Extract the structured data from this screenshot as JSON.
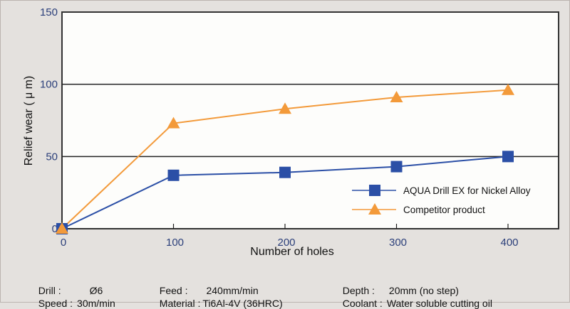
{
  "chart_data": {
    "type": "line",
    "title": "",
    "xlabel": "Number of holes",
    "ylabel": "Relief wear ( μ m)",
    "x": [
      0,
      100,
      200,
      300,
      400
    ],
    "xlim": [
      0,
      450
    ],
    "ylim": [
      0,
      150
    ],
    "xticks": [
      "0",
      "100",
      "200",
      "300",
      "400"
    ],
    "yticks": [
      "0",
      "50",
      "100",
      "150"
    ],
    "grid": "horizontal at 50 and 100",
    "legend_position": "bottom-right",
    "series": [
      {
        "name": "AQUA Drill EX for Nickel Alloy",
        "marker": "square",
        "color": "#2b4fa6",
        "values": [
          0,
          37,
          39,
          43,
          50
        ]
      },
      {
        "name": "Competitor product",
        "marker": "triangle",
        "color": "#f39a3a",
        "values": [
          0,
          73,
          83,
          91,
          96
        ]
      }
    ]
  },
  "conditions": [
    {
      "label": "Drill :",
      "value": "Ø6"
    },
    {
      "label": "Feed :",
      "value": "240mm/min"
    },
    {
      "label": "Depth :",
      "value": "20mm (no step)"
    },
    {
      "label": "Speed :",
      "value": "30m/min"
    },
    {
      "label": "Material :",
      "value": "Ti6Al-4V (36HRC)"
    },
    {
      "label": "Coolant :",
      "value": "Water soluble cutting oil"
    }
  ]
}
